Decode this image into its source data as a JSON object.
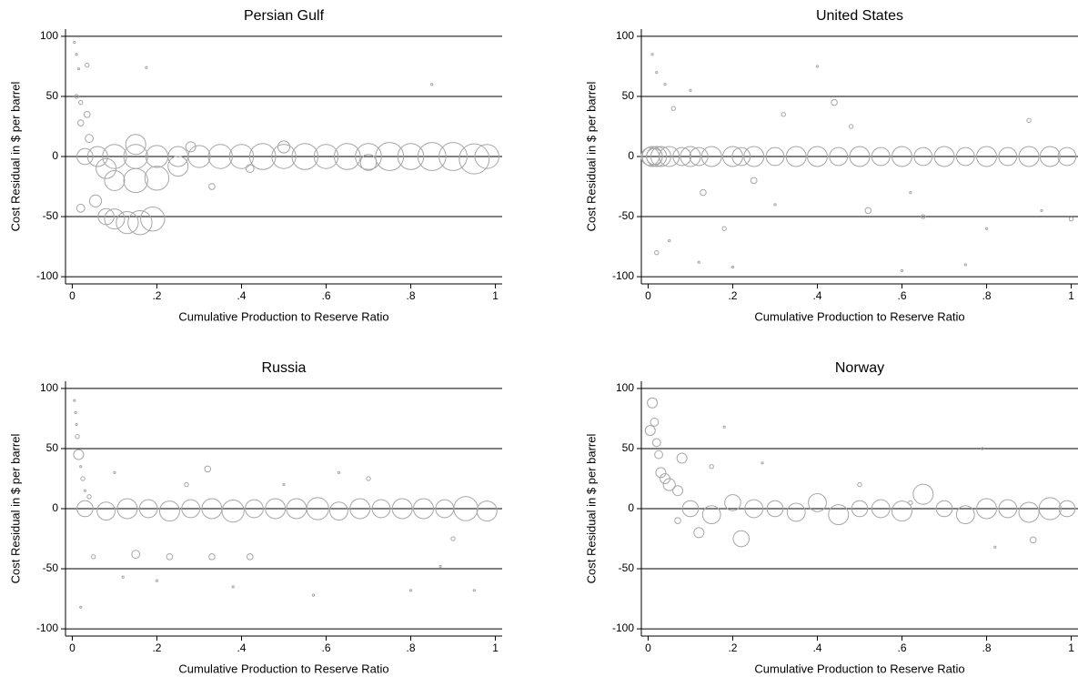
{
  "chart_data": [
    {
      "type": "scatter",
      "title": "Persian Gulf",
      "x_label": "Cumulative Production to Reserve Ratio",
      "y_label": "Cost Residual in $ per barrel",
      "xlim": [
        -0.016,
        1.016
      ],
      "ylim": [
        -106,
        106
      ],
      "xticks": [
        0,
        {
          "value": 0.2,
          "label": ".2"
        },
        {
          "value": 0.4,
          "label": ".4"
        },
        {
          "value": 0.6,
          "label": ".6"
        },
        {
          "value": 0.8,
          "label": ".8"
        },
        1
      ],
      "yticks": [
        -100,
        -50,
        0,
        50,
        100
      ],
      "grid": true,
      "series": [
        {
          "color": "#a6a6a6",
          "x": [
            0.005,
            0.01,
            0.015,
            0.035,
            0.175,
            0.85,
            0.01,
            0.02,
            0.035,
            0.04,
            0.02,
            0.055,
            0.08,
            0.1,
            0.13,
            0.16,
            0.19,
            0.02,
            0.1,
            0.15,
            0.2,
            0.08,
            0.03,
            0.06,
            0.1,
            0.15,
            0.2,
            0.25,
            0.3,
            0.35,
            0.4,
            0.45,
            0.5,
            0.55,
            0.6,
            0.65,
            0.7,
            0.75,
            0.8,
            0.85,
            0.9,
            0.95,
            0.98,
            0.33,
            0.42,
            0.28,
            0.5,
            0.7,
            0.15,
            0.25
          ],
          "values": [
            95,
            85,
            73,
            76,
            74,
            60,
            50,
            45,
            35,
            15,
            28,
            -37,
            -50,
            -52,
            -55,
            -55,
            -52,
            -43,
            -20,
            -20,
            -18,
            -10,
            0,
            0,
            0,
            0,
            0,
            0,
            0,
            0,
            0,
            0,
            0,
            0,
            0,
            0,
            0,
            0,
            0,
            0,
            0,
            -2,
            0,
            -25,
            -10,
            8,
            8,
            -5,
            10,
            -8
          ],
          "sizes": [
            1,
            1,
            1,
            2,
            1,
            1,
            2,
            2,
            3,
            4,
            3,
            6,
            8,
            10,
            11,
            12,
            12,
            4,
            10,
            12,
            12,
            10,
            8,
            10,
            12,
            12,
            11,
            10,
            11,
            12,
            12,
            13,
            12,
            13,
            12,
            13,
            13,
            14,
            13,
            14,
            14,
            15,
            12,
            3,
            4,
            5,
            6,
            8,
            10,
            10
          ]
        }
      ]
    },
    {
      "type": "scatter",
      "title": "United States",
      "x_label": "Cumulative Production to Reserve Ratio",
      "y_label": "Cost Residual in $ per barrel",
      "xlim": [
        -0.016,
        1.016
      ],
      "ylim": [
        -106,
        106
      ],
      "xticks": [
        0,
        {
          "value": 0.2,
          "label": ".2"
        },
        {
          "value": 0.4,
          "label": ".4"
        },
        {
          "value": 0.6,
          "label": ".6"
        },
        {
          "value": 0.8,
          "label": ".8"
        },
        1
      ],
      "yticks": [
        -100,
        -50,
        0,
        50,
        100
      ],
      "grid": true,
      "series": [
        {
          "color": "#a6a6a6",
          "x": [
            0.005,
            0.01,
            0.015,
            0.02,
            0.03,
            0.05,
            0.08,
            0.1,
            0.12,
            0.15,
            0.2,
            0.22,
            0.25,
            0.3,
            0.35,
            0.4,
            0.45,
            0.5,
            0.55,
            0.6,
            0.65,
            0.7,
            0.75,
            0.8,
            0.85,
            0.9,
            0.95,
            0.99,
            0.01,
            0.02,
            0.04,
            0.06,
            0.1,
            0.13,
            0.18,
            0.25,
            0.32,
            0.4,
            0.44,
            0.52,
            0.6,
            0.65,
            0.75,
            0.9,
            0.02,
            0.05,
            0.12,
            0.2,
            0.3,
            0.48,
            0.62,
            0.8,
            0.93,
            1.0
          ],
          "values": [
            0,
            0,
            0,
            0,
            0,
            0,
            0,
            0,
            0,
            0,
            0,
            0,
            0,
            0,
            0,
            0,
            0,
            0,
            0,
            0,
            0,
            0,
            0,
            0,
            0,
            0,
            0,
            0,
            85,
            70,
            60,
            40,
            55,
            -30,
            -60,
            -20,
            35,
            75,
            45,
            -45,
            -95,
            -50,
            -90,
            30,
            -80,
            -70,
            -88,
            -92,
            -40,
            25,
            -30,
            -60,
            -45,
            -52
          ],
          "sizes": [
            9,
            10,
            8,
            10,
            10,
            10,
            9,
            10,
            9,
            10,
            10,
            9,
            10,
            9,
            10,
            10,
            9,
            10,
            9,
            10,
            9,
            10,
            9,
            10,
            9,
            10,
            10,
            9,
            1,
            1,
            1,
            2,
            1,
            3,
            2,
            3,
            2,
            1,
            3,
            3,
            1,
            2,
            1,
            2,
            2,
            1,
            1,
            1,
            1,
            2,
            1,
            1,
            1,
            2
          ]
        }
      ]
    },
    {
      "type": "scatter",
      "title": "Russia",
      "x_label": "Cumulative Production to Reserve Ratio",
      "y_label": "Cost Residual in $ per barrel",
      "xlim": [
        -0.016,
        1.016
      ],
      "ylim": [
        -106,
        106
      ],
      "xticks": [
        0,
        {
          "value": 0.2,
          "label": ".2"
        },
        {
          "value": 0.4,
          "label": ".4"
        },
        {
          "value": 0.6,
          "label": ".6"
        },
        {
          "value": 0.8,
          "label": ".8"
        },
        1
      ],
      "yticks": [
        -100,
        -50,
        0,
        50,
        100
      ],
      "grid": true,
      "series": [
        {
          "color": "#a6a6a6",
          "x": [
            0.03,
            0.08,
            0.13,
            0.18,
            0.23,
            0.28,
            0.33,
            0.38,
            0.43,
            0.48,
            0.53,
            0.58,
            0.63,
            0.68,
            0.73,
            0.78,
            0.83,
            0.88,
            0.93,
            0.98,
            0.005,
            0.008,
            0.01,
            0.012,
            0.015,
            0.02,
            0.025,
            0.03,
            0.04,
            0.05,
            0.1,
            0.15,
            0.2,
            0.23,
            0.27,
            0.33,
            0.32,
            0.38,
            0.42,
            0.5,
            0.57,
            0.63,
            0.7,
            0.8,
            0.87,
            0.9,
            0.95,
            0.02,
            0.12
          ],
          "values": [
            0,
            -2,
            0,
            0,
            -2,
            0,
            0,
            -2,
            0,
            0,
            0,
            0,
            -2,
            0,
            0,
            0,
            0,
            0,
            0,
            -2,
            90,
            80,
            70,
            60,
            45,
            35,
            25,
            15,
            10,
            -40,
            30,
            -38,
            -60,
            -40,
            20,
            -40,
            33,
            -65,
            -40,
            20,
            -72,
            30,
            25,
            -68,
            -48,
            -25,
            -68,
            -82,
            -57
          ],
          "sizes": [
            8,
            9,
            10,
            9,
            10,
            9,
            10,
            11,
            9,
            10,
            10,
            11,
            9,
            10,
            9,
            10,
            10,
            9,
            12,
            10,
            1,
            1,
            1,
            2,
            5,
            1,
            2,
            1,
            2,
            2,
            1,
            4,
            1,
            3,
            2,
            3,
            3,
            1,
            3,
            1,
            1,
            1,
            2,
            1,
            1,
            2,
            1,
            1,
            1
          ]
        }
      ]
    },
    {
      "type": "scatter",
      "title": "Norway",
      "x_label": "Cumulative Production to Reserve Ratio",
      "y_label": "Cost Residual in $ per barrel",
      "xlim": [
        -0.016,
        1.016
      ],
      "ylim": [
        -106,
        106
      ],
      "xticks": [
        0,
        {
          "value": 0.2,
          "label": ".2"
        },
        {
          "value": 0.4,
          "label": ".4"
        },
        {
          "value": 0.6,
          "label": ".6"
        },
        {
          "value": 0.8,
          "label": ".8"
        },
        1
      ],
      "yticks": [
        -100,
        -50,
        0,
        50,
        100
      ],
      "grid": true,
      "series": [
        {
          "color": "#a6a6a6",
          "x": [
            0.005,
            0.01,
            0.015,
            0.02,
            0.025,
            0.03,
            0.04,
            0.05,
            0.07,
            0.08,
            0.1,
            0.15,
            0.2,
            0.22,
            0.25,
            0.3,
            0.35,
            0.4,
            0.45,
            0.5,
            0.55,
            0.6,
            0.65,
            0.7,
            0.75,
            0.8,
            0.85,
            0.9,
            0.95,
            0.99,
            0.12,
            0.18,
            0.27,
            0.5,
            0.62,
            0.79,
            0.82,
            0.91,
            0.15,
            0.07
          ],
          "values": [
            65,
            88,
            72,
            55,
            45,
            30,
            25,
            20,
            15,
            42,
            0,
            -5,
            5,
            -25,
            0,
            0,
            -3,
            5,
            -5,
            0,
            0,
            -2,
            12,
            0,
            -5,
            0,
            0,
            -3,
            0,
            0,
            -20,
            68,
            38,
            20,
            5,
            50,
            -32,
            -26,
            35,
            -10
          ],
          "sizes": [
            5,
            5,
            4,
            4,
            4,
            5,
            5,
            6,
            5,
            5,
            8,
            9,
            8,
            8,
            9,
            8,
            9,
            9,
            10,
            8,
            9,
            10,
            10,
            8,
            9,
            10,
            9,
            10,
            11,
            8,
            5,
            1,
            1,
            2,
            2,
            1,
            1,
            3,
            2,
            3
          ]
        }
      ]
    }
  ]
}
